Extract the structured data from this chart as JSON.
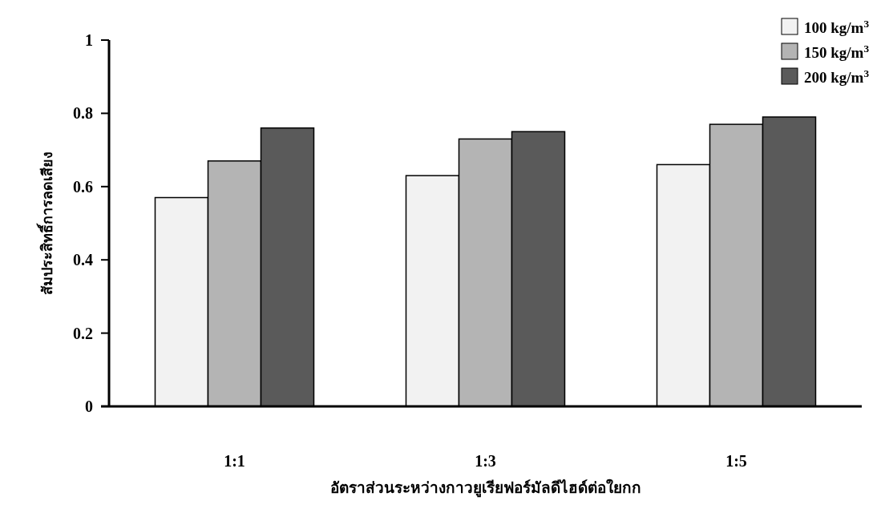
{
  "chart_data": {
    "type": "bar",
    "xlabel": "อัตราส่วนระหว่างกาวยูเรียฟอร์มัลดีไฮด์ต่อใยกก",
    "ylabel": "สัมประสิทธิ์การลดเสียง",
    "categories": [
      "1:1",
      "1:3",
      "1:5"
    ],
    "series": [
      {
        "name": "100 kg/m$^{3}$",
        "color": "#f2f2f2",
        "values": [
          0.57,
          0.63,
          0.66
        ]
      },
      {
        "name": "150 kg/m$^{3}$",
        "color": "#b4b4b4",
        "values": [
          0.67,
          0.73,
          0.77
        ]
      },
      {
        "name": "200 kg/m$^{3}$",
        "color": "#5a5a5a",
        "values": [
          0.76,
          0.75,
          0.79
        ]
      }
    ],
    "ylim": [
      0,
      1
    ],
    "yticks": [
      0,
      0.2,
      0.4,
      0.6,
      0.8,
      1
    ],
    "grid": false,
    "legend": "top right"
  }
}
